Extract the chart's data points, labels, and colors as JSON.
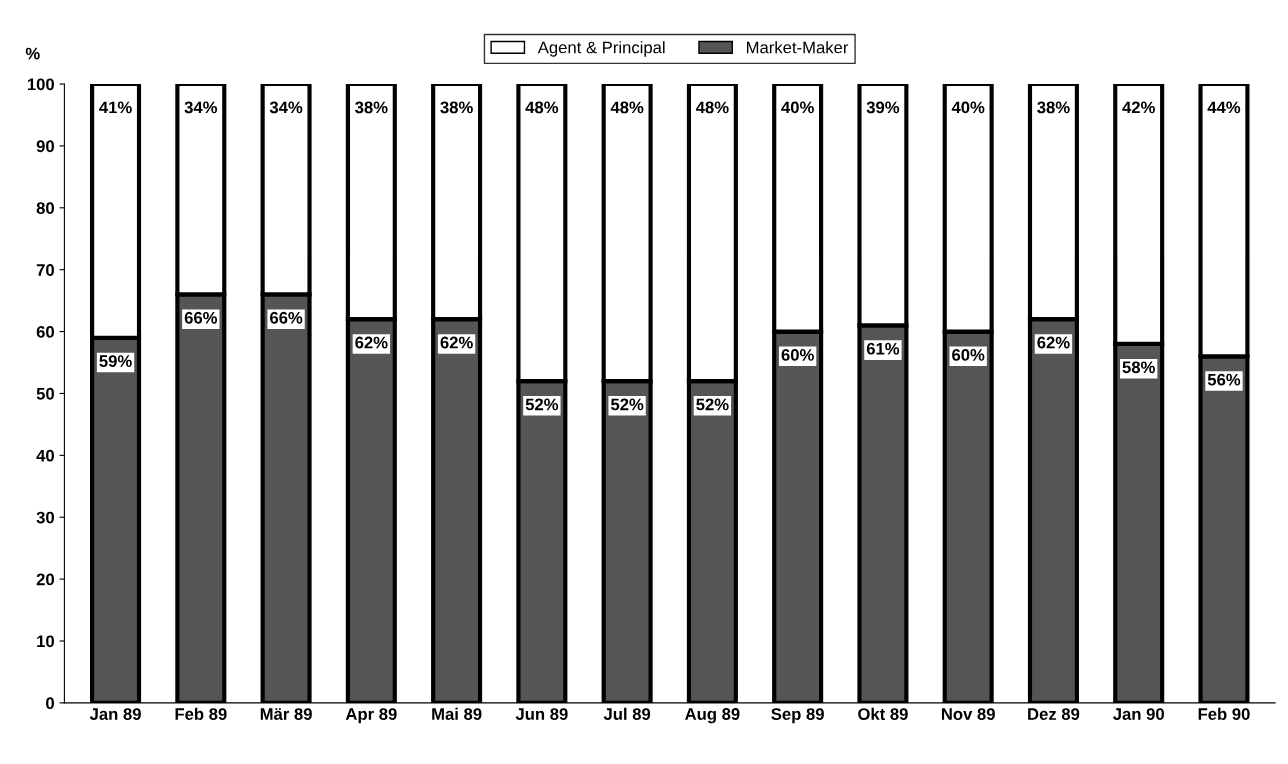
{
  "chart_data": {
    "type": "bar",
    "stacked": true,
    "ylabel": "%",
    "legend": "top",
    "grid": false,
    "categories": [
      "Jan 89",
      "Feb 89",
      "Mär 89",
      "Apr 89",
      "Mai 89",
      "Jun 89",
      "Jul 89",
      "Aug 89",
      "Sep 89",
      "Okt 89",
      "Nov 89",
      "Dez 89",
      "Jan 90",
      "Feb 90"
    ],
    "series": [
      {
        "name": "Market-Maker",
        "color": "#555555",
        "values": [
          59,
          66,
          66,
          62,
          62,
          52,
          52,
          52,
          60,
          61,
          60,
          62,
          58,
          56
        ],
        "value_labels": [
          "59%",
          "66%",
          "66%",
          "62%",
          "62%",
          "52%",
          "52%",
          "52%",
          "60%",
          "61%",
          "60%",
          "62%",
          "58%",
          "56%"
        ]
      },
      {
        "name": "Agent & Principal",
        "color": "#ffffff",
        "values": [
          41,
          34,
          34,
          38,
          38,
          48,
          48,
          48,
          40,
          39,
          40,
          38,
          42,
          44
        ],
        "value_labels": [
          "41%",
          "34%",
          "34%",
          "38%",
          "38%",
          "48%",
          "48%",
          "48%",
          "40%",
          "39%",
          "40%",
          "38%",
          "42%",
          "44%"
        ]
      }
    ],
    "ylim": [
      0,
      100
    ],
    "yticks": [
      0,
      10,
      20,
      30,
      40,
      50,
      60,
      70,
      80,
      90,
      100
    ]
  }
}
